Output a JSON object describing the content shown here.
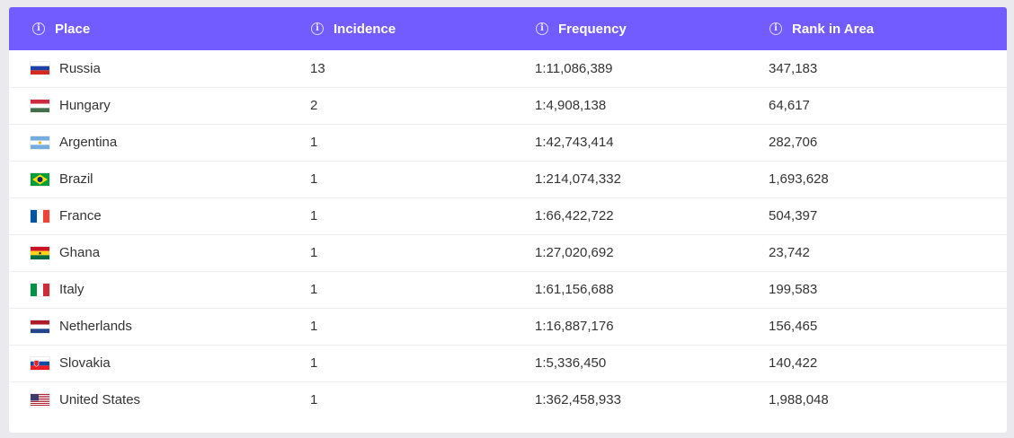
{
  "header": {
    "info_icon": "info-icon",
    "accent_color": "#735cff",
    "columns": [
      "Place",
      "Incidence",
      "Frequency",
      "Rank in Area"
    ]
  },
  "rows": [
    {
      "place": "Russia",
      "flag": "russia-flag-icon",
      "incidence": "13",
      "frequency": "1:11,086,389",
      "rank": "347,183"
    },
    {
      "place": "Hungary",
      "flag": "hungary-flag-icon",
      "incidence": "2",
      "frequency": "1:4,908,138",
      "rank": "64,617"
    },
    {
      "place": "Argentina",
      "flag": "argentina-flag-icon",
      "incidence": "1",
      "frequency": "1:42,743,414",
      "rank": "282,706"
    },
    {
      "place": "Brazil",
      "flag": "brazil-flag-icon",
      "incidence": "1",
      "frequency": "1:214,074,332",
      "rank": "1,693,628"
    },
    {
      "place": "France",
      "flag": "france-flag-icon",
      "incidence": "1",
      "frequency": "1:66,422,722",
      "rank": "504,397"
    },
    {
      "place": "Ghana",
      "flag": "ghana-flag-icon",
      "incidence": "1",
      "frequency": "1:27,020,692",
      "rank": "23,742"
    },
    {
      "place": "Italy",
      "flag": "italy-flag-icon",
      "incidence": "1",
      "frequency": "1:61,156,688",
      "rank": "199,583"
    },
    {
      "place": "Netherlands",
      "flag": "netherlands-flag-icon",
      "incidence": "1",
      "frequency": "1:16,887,176",
      "rank": "156,465"
    },
    {
      "place": "Slovakia",
      "flag": "slovakia-flag-icon",
      "incidence": "1",
      "frequency": "1:5,336,450",
      "rank": "140,422"
    },
    {
      "place": "United States",
      "flag": "united-states-flag-icon",
      "incidence": "1",
      "frequency": "1:362,458,933",
      "rank": "1,988,048"
    }
  ]
}
